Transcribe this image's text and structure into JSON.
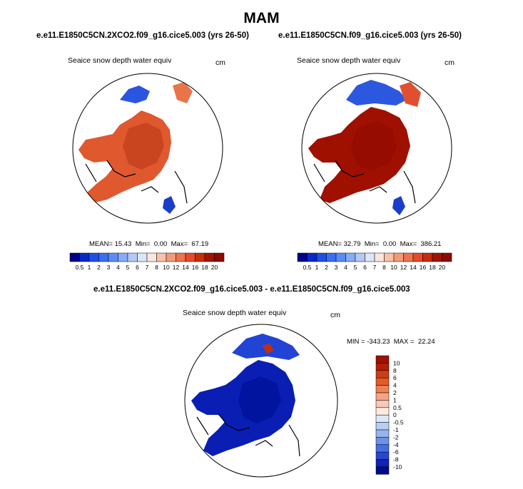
{
  "main_title": "MAM",
  "panels": [
    {
      "title": "e.e11.E1850C5CN.2XCO2.f09_g16.cice5.003 (yrs 26-50)",
      "variable": "Seaice snow depth water equiv",
      "units": "cm",
      "stats": {
        "mean_label": "MEAN=",
        "mean": "15.43",
        "min_label": "Min=",
        "min": "0.00",
        "max_label": "Max=",
        "max": "67.19"
      },
      "fill_color": "#e0582e",
      "center_color": "#c84520"
    },
    {
      "title": "e.e11.E1850C5CN.f09_g16.cice5.003 (yrs 26-50)",
      "variable": "Seaice snow depth water equiv",
      "units": "cm",
      "stats": {
        "mean_label": "MEAN=",
        "mean": "32.79",
        "min_label": "Min=",
        "min": "0.00",
        "max_label": "Max=",
        "max": "386.21"
      },
      "fill_color": "#a01000",
      "center_color": "#960c00"
    }
  ],
  "colorbar_top": {
    "labels": [
      "0.5",
      "1",
      "2",
      "3",
      "4",
      "5",
      "6",
      "7",
      "8",
      "10",
      "12",
      "14",
      "16",
      "18",
      "20"
    ],
    "colors": [
      "#00008b",
      "#0a28c8",
      "#1e50e6",
      "#3c6ef0",
      "#5a8cf5",
      "#87aaf5",
      "#b4c8f5",
      "#dce6fa",
      "#fae6dc",
      "#f5c3aa",
      "#f09b78",
      "#eb7350",
      "#e64b28",
      "#c82d0a",
      "#a01400",
      "#8c0a00"
    ]
  },
  "diff_panel": {
    "title": "e.e11.E1850C5CN.2XCO2.f09_g16.cice5.003 - e.e11.E1850C5CN.f09_g16.cice5.003",
    "variable": "Seaice snow depth water equiv",
    "units": "cm",
    "stats": {
      "min_label": "MIN =",
      "min": "-343.23",
      "max_label": "MAX =",
      "max": "22.24"
    },
    "fill_color": "#0a1eb4",
    "center_color": "#0014a0"
  },
  "colorbar_diff": {
    "labels": [
      "10",
      "8",
      "6",
      "4",
      "2",
      "1",
      "0.5",
      "0",
      "-0.5",
      "-1",
      "-2",
      "-4",
      "-6",
      "-8",
      "-10"
    ],
    "colors": [
      "#a01000",
      "#b41e05",
      "#cd3c14",
      "#e65a28",
      "#f08050",
      "#f5a582",
      "#fac8b4",
      "#fcebe1",
      "#dce8fa",
      "#b9cdf5",
      "#96b4f0",
      "#6e91eb",
      "#466ee6",
      "#2846d2",
      "#0f23b4",
      "#000a8c"
    ]
  }
}
